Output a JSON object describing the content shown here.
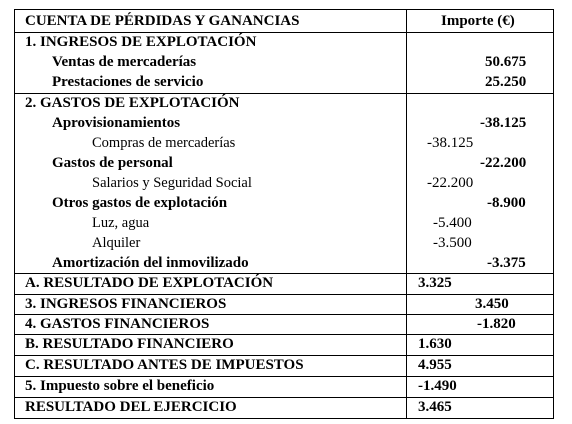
{
  "header": {
    "concept": "CUENTA DE PÉRDIDAS Y GANANCIAS",
    "amount": "Importe (€)"
  },
  "rows": [
    {
      "label": "1. INGRESOS DE EXPLOTACIÓN",
      "value": ""
    },
    {
      "label": "Ventas de mercaderías",
      "value": "50.675"
    },
    {
      "label": "Prestaciones de servicio",
      "value": "25.250"
    },
    {
      "label": "2. GASTOS DE EXPLOTACIÓN",
      "value": ""
    },
    {
      "label": "Aprovisionamientos",
      "value": "-38.125"
    },
    {
      "label": "Compras de mercaderías",
      "value": "-38.125"
    },
    {
      "label": "Gastos de personal",
      "value": "-22.200"
    },
    {
      "label": "Salarios y Seguridad Social",
      "value": "-22.200"
    },
    {
      "label": "Otros gastos de explotación",
      "value": "-8.900"
    },
    {
      "label": "Luz, agua",
      "value": "-5.400"
    },
    {
      "label": "Alquiler",
      "value": "-3.500"
    },
    {
      "label": "Amortización del inmovilizado",
      "value": "-3.375"
    },
    {
      "label": "A. RESULTADO DE EXPLOTACIÓN",
      "value": "3.325"
    },
    {
      "label": "3. INGRESOS FINANCIEROS",
      "value": "3.450"
    },
    {
      "label": "4. GASTOS FINANCIEROS",
      "value": "-1.820"
    },
    {
      "label": "B. RESULTADO FINANCIERO",
      "value": "1.630"
    },
    {
      "label": "C. RESULTADO ANTES DE IMPUESTOS",
      "value": "4.955"
    },
    {
      "label": "5. Impuesto sobre el beneficio",
      "value": "-1.490"
    },
    {
      "label": "RESULTADO DEL EJERCICIO",
      "value": "3.465"
    }
  ]
}
